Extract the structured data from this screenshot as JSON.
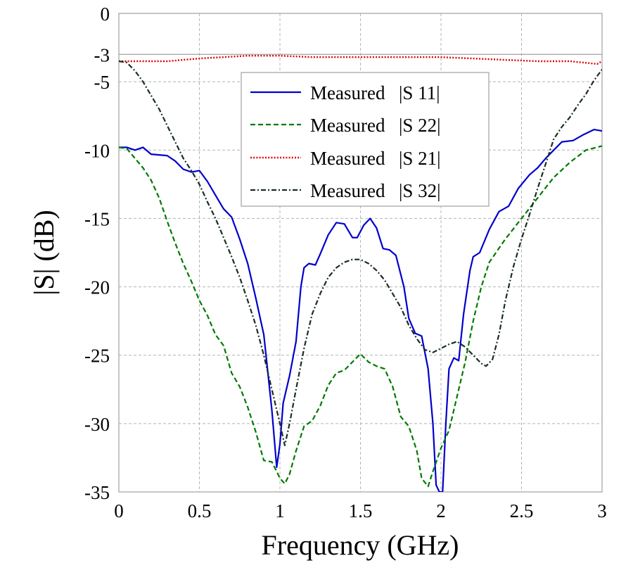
{
  "chart_data": {
    "type": "line",
    "title": "",
    "xlabel": "Frequency (GHz)",
    "ylabel": "|S| (dB)",
    "xlim": [
      0,
      3
    ],
    "ylim": [
      -35,
      0
    ],
    "x_ticks": [
      0,
      0.5,
      1,
      1.5,
      2,
      2.5,
      3
    ],
    "x_tick_labels": [
      "0",
      "0.5",
      "1",
      "1.5",
      "2",
      "2.5",
      "3"
    ],
    "y_ticks": [
      0,
      -3,
      -5,
      -10,
      -15,
      -20,
      -25,
      -30,
      -35
    ],
    "y_tick_labels": [
      "0",
      "-3",
      "-5",
      "-10",
      "-15",
      "-20",
      "-25",
      "-30",
      "-35"
    ],
    "solid_reference_line": -3,
    "grid": true,
    "legend_position": "top-center",
    "series": [
      {
        "name": "Measured |S11|",
        "legend_main": "Measured",
        "legend_sub": "|S 11|",
        "color": "#0000cc",
        "style": "solid",
        "x": [
          0,
          0.05,
          0.1,
          0.15,
          0.2,
          0.3,
          0.35,
          0.4,
          0.45,
          0.5,
          0.55,
          0.6,
          0.65,
          0.7,
          0.75,
          0.8,
          0.85,
          0.9,
          0.95,
          0.98,
          1.0,
          1.02,
          1.06,
          1.1,
          1.13,
          1.15,
          1.18,
          1.22,
          1.25,
          1.3,
          1.35,
          1.4,
          1.45,
          1.48,
          1.52,
          1.56,
          1.6,
          1.64,
          1.68,
          1.72,
          1.77,
          1.8,
          1.84,
          1.88,
          1.92,
          1.95,
          1.97,
          1.99,
          2.01,
          2.03,
          2.05,
          2.08,
          2.11,
          2.14,
          2.18,
          2.2,
          2.24,
          2.3,
          2.36,
          2.42,
          2.48,
          2.55,
          2.6,
          2.65,
          2.7,
          2.75,
          2.82,
          2.88,
          2.95,
          3.0
        ],
        "y": [
          -9.8,
          -9.8,
          -10.0,
          -9.8,
          -10.3,
          -10.4,
          -10.8,
          -11.4,
          -11.6,
          -11.5,
          -12.3,
          -13.3,
          -14.3,
          -14.9,
          -16.5,
          -18.3,
          -20.8,
          -23.5,
          -29.0,
          -33.2,
          -31.5,
          -28.5,
          -26.5,
          -24.0,
          -20.0,
          -18.6,
          -18.3,
          -18.4,
          -17.6,
          -16.2,
          -15.3,
          -15.4,
          -16.4,
          -16.4,
          -15.5,
          -15.0,
          -15.7,
          -17.2,
          -17.3,
          -17.7,
          -20.0,
          -22.3,
          -23.4,
          -23.6,
          -26.0,
          -30.0,
          -34.5,
          -35.0,
          -35.0,
          -30.0,
          -26.0,
          -25.2,
          -25.4,
          -22.0,
          -18.8,
          -17.8,
          -17.5,
          -15.8,
          -14.5,
          -14.1,
          -12.8,
          -11.8,
          -11.3,
          -10.6,
          -10.0,
          -9.4,
          -9.3,
          -8.9,
          -8.5,
          -8.6
        ]
      },
      {
        "name": "Measured |S22|",
        "legend_main": "Measured",
        "legend_sub": "|S 22|",
        "color": "#007a00",
        "style": "dashed",
        "x": [
          0,
          0.05,
          0.1,
          0.15,
          0.2,
          0.25,
          0.3,
          0.35,
          0.4,
          0.45,
          0.5,
          0.55,
          0.6,
          0.65,
          0.7,
          0.75,
          0.8,
          0.85,
          0.9,
          0.95,
          0.98,
          1.0,
          1.03,
          1.06,
          1.1,
          1.15,
          1.2,
          1.25,
          1.3,
          1.35,
          1.4,
          1.45,
          1.5,
          1.55,
          1.6,
          1.65,
          1.7,
          1.75,
          1.8,
          1.85,
          1.88,
          1.92,
          1.95,
          2.0,
          2.05,
          2.1,
          2.15,
          2.2,
          2.25,
          2.3,
          2.4,
          2.5,
          2.6,
          2.7,
          2.8,
          2.9,
          3.0
        ],
        "y": [
          -9.8,
          -9.9,
          -10.6,
          -11.3,
          -12.2,
          -13.5,
          -15.2,
          -16.8,
          -18.3,
          -19.6,
          -21.0,
          -22.1,
          -23.5,
          -24.3,
          -26.3,
          -27.3,
          -28.8,
          -30.6,
          -32.7,
          -32.8,
          -33.5,
          -34.0,
          -34.4,
          -33.7,
          -32.0,
          -30.2,
          -29.8,
          -28.7,
          -27.2,
          -26.3,
          -26.1,
          -25.5,
          -24.9,
          -25.5,
          -25.8,
          -26.0,
          -27.3,
          -29.5,
          -30.2,
          -32.0,
          -34.0,
          -34.6,
          -33.5,
          -31.8,
          -30.5,
          -28.0,
          -25.5,
          -22.5,
          -20.0,
          -18.2,
          -16.5,
          -15.0,
          -13.5,
          -12.0,
          -10.9,
          -10.0,
          -9.7
        ]
      },
      {
        "name": "Measured |S21|",
        "legend_main": "Measured",
        "legend_sub": "|S 21|",
        "color": "#e00000",
        "style": "dotted",
        "x": [
          0,
          0.3,
          0.5,
          0.8,
          1.0,
          1.2,
          1.5,
          1.8,
          2.0,
          2.2,
          2.4,
          2.6,
          2.8,
          2.97,
          3.0
        ],
        "y": [
          -3.5,
          -3.5,
          -3.3,
          -3.1,
          -3.1,
          -3.2,
          -3.2,
          -3.2,
          -3.2,
          -3.3,
          -3.4,
          -3.5,
          -3.5,
          -3.7,
          -3.5
        ]
      },
      {
        "name": "Measured |S32|",
        "legend_main": "Measured",
        "legend_sub": "|S 32|",
        "color": "#1a2e22",
        "style": "dashdot",
        "x": [
          0,
          0.05,
          0.1,
          0.15,
          0.2,
          0.25,
          0.3,
          0.35,
          0.4,
          0.45,
          0.5,
          0.55,
          0.6,
          0.65,
          0.7,
          0.75,
          0.8,
          0.85,
          0.9,
          0.95,
          1.0,
          1.03,
          1.06,
          1.1,
          1.15,
          1.2,
          1.25,
          1.3,
          1.35,
          1.4,
          1.45,
          1.5,
          1.55,
          1.6,
          1.65,
          1.7,
          1.75,
          1.8,
          1.85,
          1.9,
          1.95,
          2.0,
          2.05,
          2.1,
          2.15,
          2.2,
          2.25,
          2.28,
          2.32,
          2.36,
          2.4,
          2.45,
          2.5,
          2.55,
          2.6,
          2.65,
          2.7,
          2.75,
          2.8,
          2.85,
          2.9,
          2.95,
          3.0
        ],
        "y": [
          -3.5,
          -3.6,
          -4.2,
          -5.0,
          -6.0,
          -7.0,
          -8.2,
          -9.4,
          -10.6,
          -11.5,
          -12.5,
          -13.8,
          -15.0,
          -16.4,
          -17.8,
          -19.3,
          -21.0,
          -22.8,
          -25.0,
          -27.5,
          -30.0,
          -31.6,
          -30.0,
          -27.5,
          -24.5,
          -22.0,
          -20.5,
          -19.3,
          -18.6,
          -18.2,
          -18.0,
          -18.0,
          -18.3,
          -18.8,
          -19.5,
          -20.5,
          -21.5,
          -22.8,
          -23.8,
          -24.6,
          -24.8,
          -24.5,
          -24.2,
          -24.0,
          -24.4,
          -25.0,
          -25.6,
          -25.8,
          -25.3,
          -23.5,
          -21.0,
          -18.5,
          -16.5,
          -14.7,
          -12.8,
          -11.0,
          -9.2,
          -8.3,
          -7.6,
          -6.7,
          -5.9,
          -4.9,
          -4.1
        ]
      }
    ]
  }
}
